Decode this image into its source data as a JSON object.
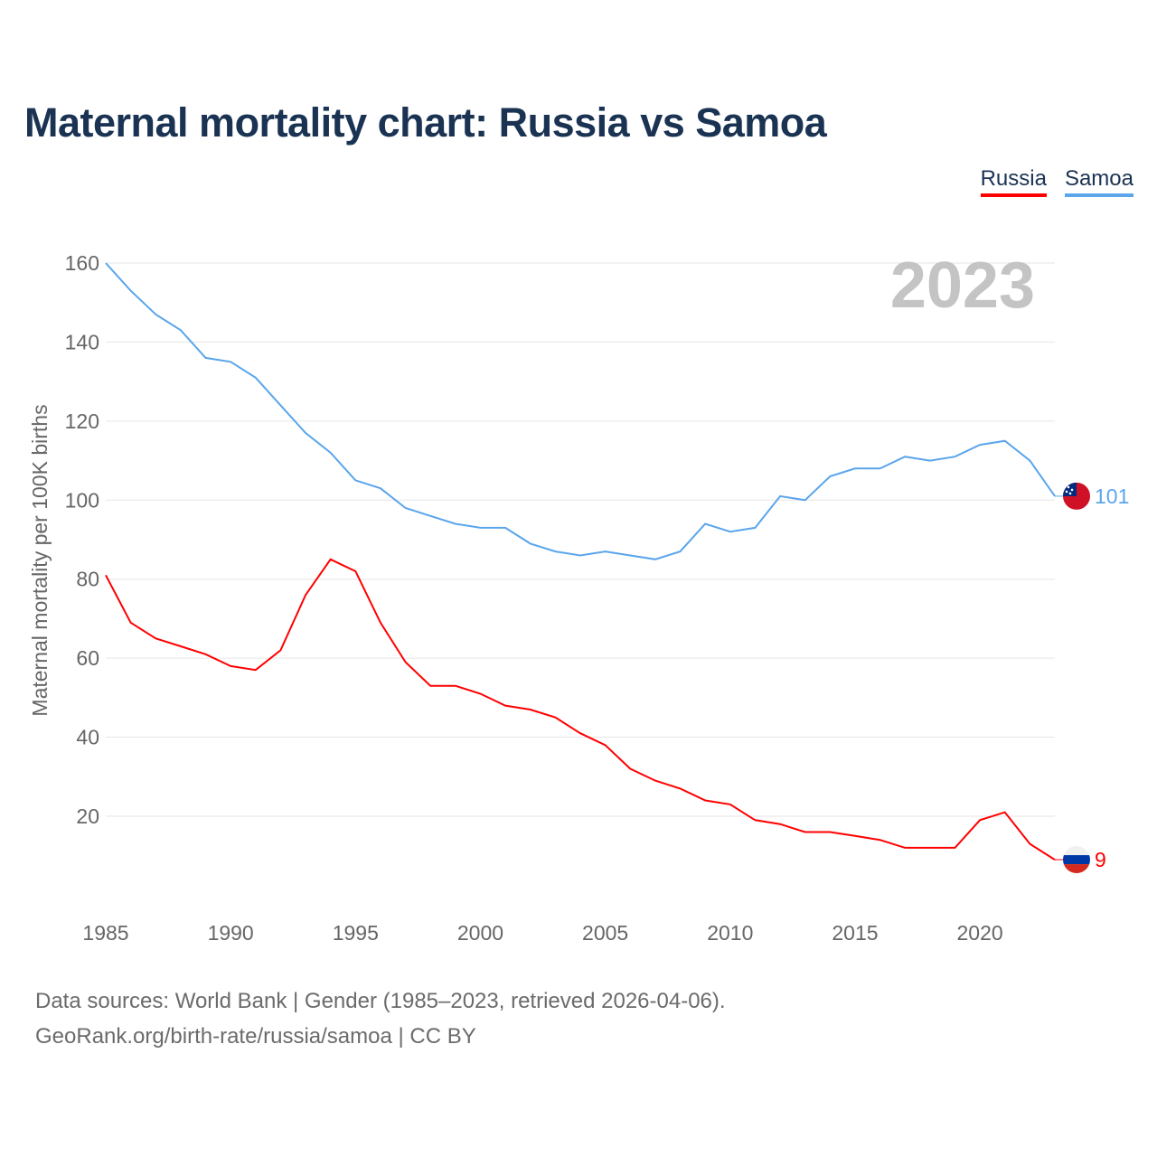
{
  "title": "Maternal mortality chart: Russia vs Samoa",
  "legend": [
    {
      "label": "Russia",
      "color": "#ff0000"
    },
    {
      "label": "Samoa",
      "color": "#5aa5ec"
    }
  ],
  "year_watermark": "2023",
  "source": {
    "line1": "Data sources: World Bank | Gender (1985–2023, retrieved 2026-04-06).",
    "line2": "GeoRank.org/birth-rate/russia/samoa | CC BY"
  },
  "chart_data": {
    "type": "line",
    "title": "Maternal mortality chart: Russia vs Samoa",
    "xlabel": "",
    "ylabel": "Maternal mortality per 100K births",
    "xlim": [
      1985,
      2023
    ],
    "ylim": [
      0,
      160
    ],
    "yticks": [
      20,
      40,
      60,
      80,
      100,
      120,
      140,
      160
    ],
    "xticks": [
      1985,
      1990,
      1995,
      2000,
      2005,
      2010,
      2015,
      2020
    ],
    "grid": true,
    "legend_position": "top-right",
    "x": [
      1985,
      1986,
      1987,
      1988,
      1989,
      1990,
      1991,
      1992,
      1993,
      1994,
      1995,
      1996,
      1997,
      1998,
      1999,
      2000,
      2001,
      2002,
      2003,
      2004,
      2005,
      2006,
      2007,
      2008,
      2009,
      2010,
      2011,
      2012,
      2013,
      2014,
      2015,
      2016,
      2017,
      2018,
      2019,
      2020,
      2021,
      2022,
      2023
    ],
    "series": [
      {
        "name": "Samoa",
        "color": "#5aa5ec",
        "end_label": "101",
        "flag": "samoa-flag",
        "values": [
          160,
          153,
          147,
          143,
          136,
          135,
          131,
          124,
          117,
          112,
          105,
          103,
          98,
          96,
          94,
          93,
          93,
          89,
          87,
          86,
          87,
          86,
          85,
          87,
          94,
          92,
          93,
          101,
          100,
          106,
          108,
          108,
          111,
          110,
          111,
          114,
          115,
          110,
          101
        ]
      },
      {
        "name": "Russia",
        "color": "#ff0000",
        "end_label": "9",
        "flag": "russia-flag",
        "values": [
          81,
          69,
          65,
          63,
          61,
          58,
          57,
          62,
          76,
          85,
          82,
          69,
          59,
          53,
          53,
          51,
          48,
          47,
          45,
          41,
          38,
          32,
          29,
          27,
          24,
          23,
          19,
          18,
          16,
          16,
          15,
          14,
          12,
          12,
          12,
          19,
          21,
          13,
          9
        ]
      }
    ]
  }
}
